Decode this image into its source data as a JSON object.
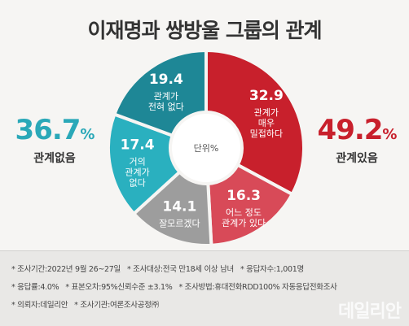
{
  "title": "이재명과 쌍방울 그룹의 관계",
  "summary": {
    "no_relation": {
      "value": "36.7",
      "unit": "%",
      "label": "관계없음"
    },
    "relation": {
      "value": "49.2",
      "unit": "%",
      "label": "관계있음"
    }
  },
  "chart_data": {
    "type": "pie",
    "center_label": "단위%",
    "slices": [
      {
        "value": 32.9,
        "label": [
          "관계가",
          "매우",
          "밀접하다"
        ],
        "color": "#c8202c"
      },
      {
        "value": 16.3,
        "label": [
          "어느 정도",
          "관계가 있다"
        ],
        "color": "#d84a58"
      },
      {
        "value": 14.1,
        "label": [
          "잘모르겠다"
        ],
        "color": "#9d9d9d"
      },
      {
        "value": 17.4,
        "label": [
          "거의",
          "관계가",
          "없다"
        ],
        "color": "#2ab0bf"
      },
      {
        "value": 19.4,
        "label": [
          "관계가",
          "전혀 없다"
        ],
        "color": "#1e8796"
      }
    ]
  },
  "notes": {
    "rows": [
      [
        "* 조사기간:2022년 9월 26~27일",
        "* 조사대상:전국 만18세 이상 남녀",
        "* 응답자수:1,001명"
      ],
      [
        "* 응답률:4.0%",
        "* 표본오차:95%신뢰수준 ±3.1%",
        "* 조사방법:휴대전화RDD100% 자동응답전화조사"
      ],
      [
        "* 의뢰자:데일리안",
        "* 조사기관:여론조사공정㈜"
      ]
    ]
  },
  "brand": "데일리안"
}
